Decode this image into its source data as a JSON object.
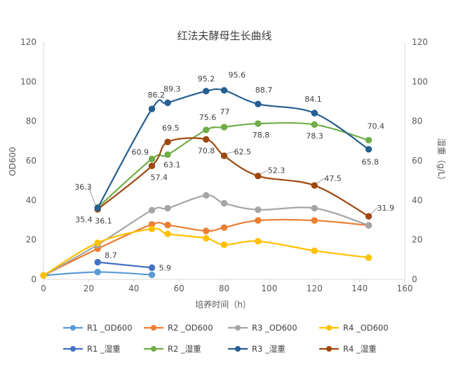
{
  "chart_data": {
    "type": "line",
    "title": "红法夫酵母生长曲线",
    "xlabel": "培养时间（h）",
    "ylabel": "OD600",
    "y2label": "湿重（g/L）",
    "xlim": [
      0,
      160
    ],
    "ylim": [
      0,
      120
    ],
    "y2lim": [
      0,
      120
    ],
    "xticks": [
      0,
      20,
      40,
      60,
      80,
      100,
      120,
      140,
      160
    ],
    "yticks": [
      0,
      20,
      40,
      60,
      80,
      100,
      120
    ],
    "y2ticks": [
      0,
      20,
      40,
      60,
      80,
      100,
      120
    ],
    "grid": false,
    "legend_position": "bottom",
    "series": [
      {
        "name": "R1 _OD600",
        "axis": "left",
        "color": "#5B9BD5",
        "points": [
          [
            0,
            2
          ],
          [
            24,
            3.7
          ],
          [
            48,
            2.3
          ]
        ]
      },
      {
        "name": "R2 _OD600",
        "axis": "left",
        "color": "#ED7D31",
        "points": [
          [
            0,
            2
          ],
          [
            24,
            15.5
          ],
          [
            48,
            27.8
          ],
          [
            55,
            27.5
          ],
          [
            72,
            24.5
          ],
          [
            80,
            26.2
          ],
          [
            95,
            29.8
          ],
          [
            120,
            29.8
          ],
          [
            144,
            27.3
          ]
        ]
      },
      {
        "name": "R3 _OD600",
        "axis": "left",
        "color": "#A5A5A5",
        "points": [
          [
            0,
            2
          ],
          [
            24,
            17.5
          ],
          [
            48,
            35
          ],
          [
            55,
            36
          ],
          [
            72,
            42.5
          ],
          [
            80,
            38.5
          ],
          [
            95,
            35.2
          ],
          [
            120,
            36
          ],
          [
            144,
            27.3
          ]
        ]
      },
      {
        "name": "R4 _OD600",
        "axis": "left",
        "color": "#FFC000",
        "points": [
          [
            0,
            2
          ],
          [
            24,
            18.5
          ],
          [
            48,
            25.5
          ],
          [
            55,
            23
          ],
          [
            72,
            20.8
          ],
          [
            80,
            17.5
          ],
          [
            95,
            19.3
          ],
          [
            120,
            14.5
          ],
          [
            144,
            11
          ]
        ]
      },
      {
        "name": "R1 _湿重",
        "axis": "right",
        "color": "#4472C4",
        "points": [
          [
            24,
            8.7
          ],
          [
            48,
            5.9
          ]
        ],
        "labels": [
          "8.7",
          "5.9"
        ]
      },
      {
        "name": "R2 _湿重",
        "axis": "right",
        "color": "#70AD47",
        "points": [
          [
            24,
            36.3
          ],
          [
            48,
            60.9
          ],
          [
            55,
            63.1
          ],
          [
            72,
            75.6
          ],
          [
            80,
            77
          ],
          [
            95,
            78.8
          ],
          [
            120,
            78.3
          ],
          [
            144,
            70.4
          ]
        ],
        "labels": [
          "36.3",
          "60.9",
          "63.1",
          "75.6",
          "77",
          "78.8",
          "78.3",
          "70.4"
        ]
      },
      {
        "name": "R3 _湿重",
        "axis": "right",
        "color": "#255E91",
        "points": [
          [
            24,
            36.1
          ],
          [
            48,
            86.2
          ],
          [
            55,
            89.3
          ],
          [
            72,
            95.2
          ],
          [
            80,
            95.6
          ],
          [
            95,
            88.7
          ],
          [
            120,
            84.1
          ],
          [
            144,
            65.8
          ]
        ],
        "labels": [
          "36.1",
          "86.2",
          "89.3",
          "95.2",
          "95.6",
          "88.7",
          "84.1",
          "65.8"
        ]
      },
      {
        "name": "R4 _湿重",
        "axis": "right",
        "color": "#9E480E",
        "points": [
          [
            24,
            35.4
          ],
          [
            48,
            57.4
          ],
          [
            55,
            69.5
          ],
          [
            72,
            70.8
          ],
          [
            80,
            62.5
          ],
          [
            95,
            52.3
          ],
          [
            120,
            47.5
          ],
          [
            144,
            31.9
          ]
        ],
        "labels": [
          "35.4",
          "57.4",
          "69.5",
          "70.8",
          "62.5",
          "52.3",
          "47.5",
          "31.9"
        ]
      }
    ]
  }
}
